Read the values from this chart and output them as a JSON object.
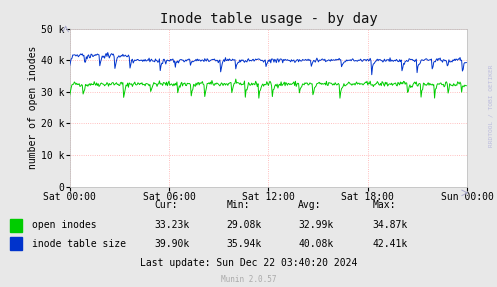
{
  "title": "Inode table usage - by day",
  "ylabel": "number of open inodes",
  "bg_color": "#e8e8e8",
  "plot_bg_color": "#ffffff",
  "grid_color": "#ffaaaa",
  "x_labels": [
    "Sat 00:00",
    "Sat 06:00",
    "Sat 12:00",
    "Sat 18:00",
    "Sun 00:00"
  ],
  "ylim": [
    0,
    50000
  ],
  "yticks": [
    0,
    10000,
    20000,
    30000,
    40000,
    50000
  ],
  "ytick_labels": [
    "0",
    "10 k",
    "20 k",
    "30 k",
    "40 k",
    "50 k"
  ],
  "green_color": "#00cc00",
  "blue_color": "#0033cc",
  "stats_open_inodes": [
    "33.23k",
    "29.08k",
    "32.99k",
    "34.87k"
  ],
  "stats_inode_table": [
    "39.90k",
    "35.94k",
    "40.08k",
    "42.41k"
  ],
  "last_update": "Last update: Sun Dec 22 03:40:20 2024",
  "munin_version": "Munin 2.0.57",
  "watermark": "RRDTOOL / TOBI OETIKER",
  "title_fontsize": 10,
  "axis_label_fontsize": 7,
  "tick_fontsize": 7,
  "stats_fontsize": 7
}
